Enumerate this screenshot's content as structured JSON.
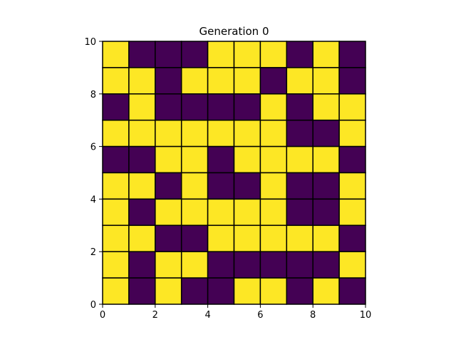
{
  "chart_data": {
    "type": "heatmap",
    "title": "Generation 0",
    "xlabel": "",
    "ylabel": "",
    "xlim": [
      0,
      10
    ],
    "ylim": [
      0,
      10
    ],
    "x_ticks": [
      0,
      2,
      4,
      6,
      8,
      10
    ],
    "y_ticks": [
      0,
      2,
      4,
      6,
      8,
      10
    ],
    "x_tick_labels": [
      "0",
      "2",
      "4",
      "6",
      "8",
      "10"
    ],
    "y_tick_labels": [
      "0",
      "2",
      "4",
      "6",
      "8",
      "10"
    ],
    "grid": false,
    "cell_edge_color": "#000000",
    "colors": {
      "alive": "#fde725",
      "dead": "#440154"
    },
    "cells_top_to_bottom": [
      [
        1,
        0,
        0,
        0,
        1,
        1,
        1,
        0,
        1,
        0
      ],
      [
        1,
        1,
        0,
        1,
        1,
        1,
        0,
        1,
        1,
        0
      ],
      [
        0,
        1,
        0,
        0,
        0,
        0,
        1,
        0,
        1,
        1
      ],
      [
        1,
        1,
        1,
        1,
        1,
        1,
        1,
        0,
        0,
        1
      ],
      [
        0,
        0,
        1,
        1,
        0,
        1,
        1,
        1,
        1,
        0
      ],
      [
        1,
        1,
        0,
        1,
        0,
        0,
        1,
        0,
        0,
        1
      ],
      [
        1,
        0,
        1,
        1,
        1,
        1,
        1,
        0,
        0,
        1
      ],
      [
        1,
        1,
        0,
        0,
        1,
        1,
        1,
        1,
        1,
        0
      ],
      [
        1,
        0,
        1,
        1,
        0,
        0,
        0,
        0,
        0,
        1
      ],
      [
        1,
        0,
        1,
        0,
        0,
        1,
        1,
        0,
        1,
        0
      ]
    ]
  }
}
